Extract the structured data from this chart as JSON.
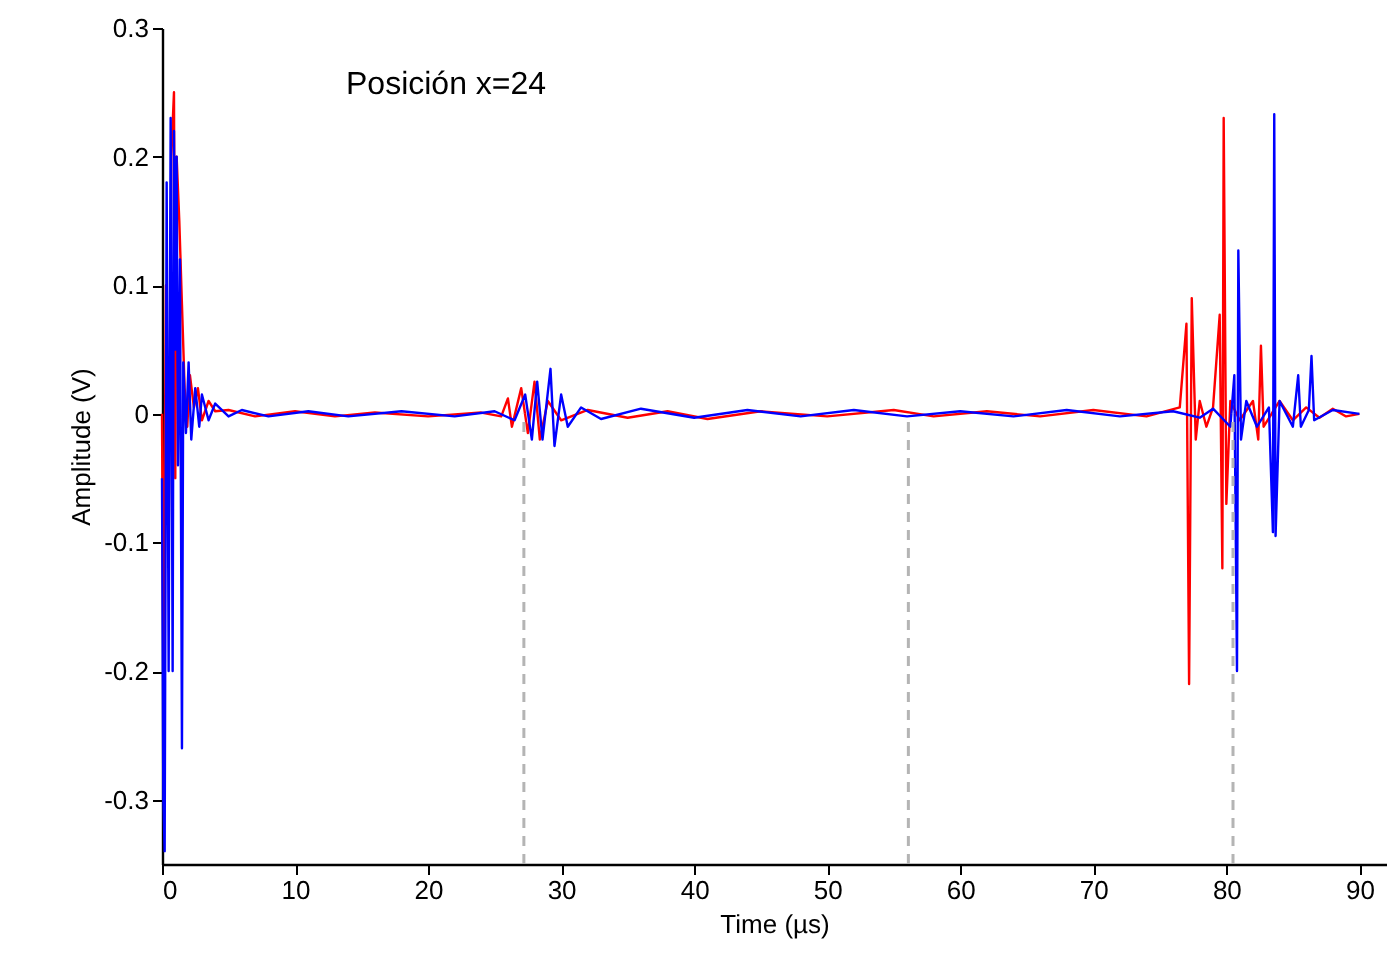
{
  "chart_data": {
    "type": "line",
    "xlabel": "Time (µs)",
    "ylabel": "Amplitude (V)",
    "annotations": [
      "Posición x=24"
    ],
    "xlim": [
      0,
      92
    ],
    "xticks": [
      0,
      10,
      20,
      30,
      40,
      50,
      60,
      70,
      80,
      90
    ],
    "ylim": [
      -0.35,
      0.3
    ],
    "yticks": [
      -0.3,
      -0.2,
      -0.1,
      0,
      0.1,
      0.2,
      0.3
    ],
    "grid": false,
    "line_style": "solid",
    "marker": "none",
    "ref_lines": [
      {
        "axis": "x",
        "value": 27.2,
        "color": "#b4b4b4",
        "line_style": "dashed"
      },
      {
        "axis": "x",
        "value": 56.1,
        "color": "#b4b4b4",
        "line_style": "dashed"
      },
      {
        "axis": "x",
        "value": 80.5,
        "color": "#b4b4b4",
        "line_style": "dashed"
      }
    ],
    "series": [
      {
        "color": "#ff0000",
        "x": [
          0,
          0.1,
          0.3,
          0.5,
          0.7,
          0.9,
          1.0,
          1.1,
          1.3,
          1.5,
          1.7,
          1.9,
          2.1,
          2.4,
          2.7,
          3.0,
          3.5,
          4.0,
          5,
          7,
          10,
          13,
          16,
          20,
          24,
          25.5,
          26,
          26.3,
          27,
          27.5,
          28,
          28.4,
          29,
          30,
          32,
          35,
          38,
          41,
          45,
          50,
          55,
          58,
          62,
          66,
          70,
          74,
          76.5,
          77.0,
          77.2,
          77.4,
          77.7,
          78,
          78.5,
          79,
          79.5,
          79.7,
          79.8,
          80,
          80.3,
          81,
          82,
          82.4,
          82.6,
          82.8,
          84,
          85,
          86,
          87,
          88,
          89,
          90
        ],
        "values": [
          0,
          -0.2,
          0.1,
          -0.1,
          0.2,
          0.25,
          -0.05,
          0.2,
          0.15,
          0.085,
          0.02,
          -0.01,
          0.03,
          0.005,
          0.02,
          -0.005,
          0.01,
          0.002,
          0.003,
          -0.002,
          0.002,
          -0.002,
          0.001,
          -0.002,
          0.001,
          -0.002,
          0.012,
          -0.01,
          0.02,
          -0.015,
          0.025,
          -0.02,
          0.01,
          -0.005,
          0.003,
          -0.003,
          0.002,
          -0.004,
          0.002,
          -0.002,
          0.003,
          -0.002,
          0.002,
          -0.002,
          0.003,
          -0.002,
          0.005,
          0.07,
          -0.21,
          0.09,
          -0.02,
          0.01,
          -0.01,
          0.005,
          0.077,
          -0.12,
          0.23,
          -0.07,
          0.01,
          -0.005,
          0.01,
          -0.02,
          0.053,
          -0.01,
          0.01,
          -0.005,
          0.005,
          -0.003,
          0.004,
          -0.002,
          0
        ]
      },
      {
        "color": "#0000ff",
        "x": [
          0,
          0.1,
          0.2,
          0.35,
          0.5,
          0.65,
          0.8,
          0.9,
          1.0,
          1.1,
          1.2,
          1.35,
          1.5,
          1.6,
          1.8,
          2.0,
          2.2,
          2.5,
          2.8,
          3.0,
          3.5,
          4,
          5,
          6,
          8,
          11,
          14,
          18,
          22,
          25,
          26.5,
          27.3,
          27.8,
          28.2,
          28.6,
          29.2,
          29.5,
          30,
          30.5,
          31.5,
          33,
          36,
          40,
          44,
          48,
          52,
          56,
          60,
          64,
          68,
          72,
          76,
          78,
          79,
          80.3,
          80.6,
          80.8,
          80.9,
          81.1,
          81.5,
          82.3,
          83.2,
          83.5,
          83.6,
          83.7,
          84,
          85,
          85.4,
          85.6,
          86.2,
          86.4,
          86.6,
          88,
          90
        ],
        "values": [
          -0.05,
          -0.3,
          -0.34,
          0.18,
          -0.2,
          0.23,
          -0.2,
          0.22,
          0.05,
          0.2,
          -0.04,
          0.12,
          -0.26,
          0.04,
          -0.015,
          0.04,
          -0.02,
          0.02,
          -0.01,
          0.015,
          -0.005,
          0.008,
          -0.002,
          0.003,
          -0.002,
          0.002,
          -0.002,
          0.002,
          -0.002,
          0.002,
          -0.005,
          0.015,
          -0.02,
          0.025,
          -0.02,
          0.035,
          -0.025,
          0.015,
          -0.01,
          0.005,
          -0.004,
          0.004,
          -0.003,
          0.003,
          -0.002,
          0.003,
          -0.002,
          0.002,
          -0.002,
          0.003,
          -0.002,
          0.002,
          -0.003,
          0.004,
          -0.01,
          0.03,
          -0.2,
          0.127,
          -0.02,
          0.01,
          -0.01,
          0.005,
          -0.092,
          0.233,
          -0.095,
          0.01,
          -0.01,
          0.03,
          -0.01,
          0.003,
          0.045,
          -0.005,
          0.003,
          0
        ]
      }
    ]
  }
}
